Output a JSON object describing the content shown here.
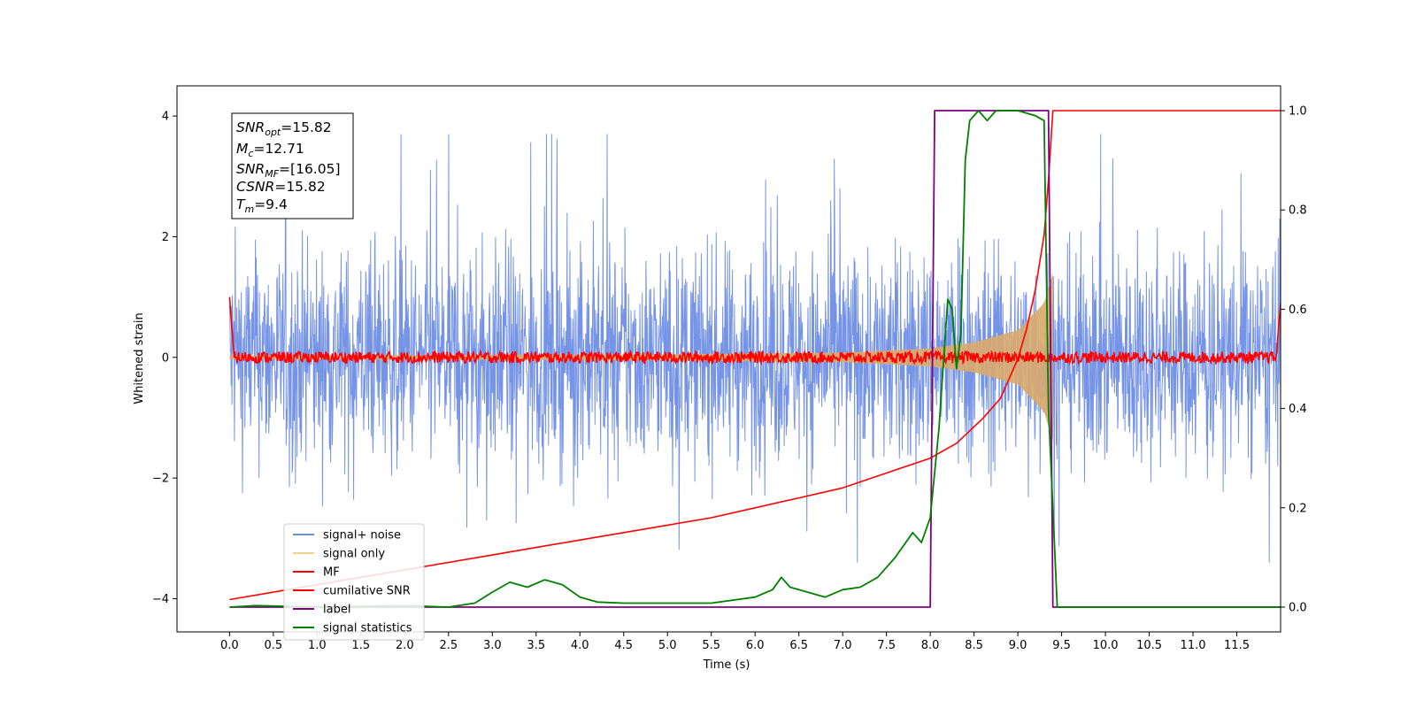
{
  "chart_data": {
    "type": "line",
    "xlabel": "Time (s)",
    "ylabel": "Whitened strain",
    "xlim": [
      -0.6,
      12.0
    ],
    "ylim": [
      -4.55,
      4.5
    ],
    "ylim_right": [
      -0.05,
      1.05
    ],
    "xticks": [
      "0.0",
      "0.5",
      "1.0",
      "1.5",
      "2.0",
      "2.5",
      "3.0",
      "3.5",
      "4.0",
      "4.5",
      "5.0",
      "5.5",
      "6.0",
      "6.5",
      "7.0",
      "7.5",
      "8.0",
      "8.5",
      "9.0",
      "9.5",
      "10.0",
      "10.5",
      "11.0",
      "11.5"
    ],
    "yticks_left": [
      "4",
      "2",
      "0",
      "−2",
      "−4"
    ],
    "yticks_right": [
      "1.0",
      "0.8",
      "0.6",
      "0.4",
      "0.2",
      "0.0"
    ],
    "colors": {
      "noise": "#6f8ee6",
      "signal": "#d9a96c",
      "mf": "#ff0000",
      "csnr": "#ff0000",
      "label": "#800080",
      "stats": "#008000"
    },
    "info_box": {
      "snr_opt_prefix": "SNR",
      "snr_opt_sub": "opt",
      "snr_opt_value": "=15.82",
      "mc_prefix": "M",
      "mc_sub": "c",
      "mc_value": "=12.71",
      "snr_mf_prefix": "SNR",
      "snr_mf_sub": "MF",
      "snr_mf_value": "=[16.05]",
      "csnr_prefix": "CSNR",
      "csnr_value": "=15.82",
      "tm_prefix": "T",
      "tm_sub": "m",
      "tm_value": "=9.4"
    },
    "legend": [
      {
        "label": "signal+ noise",
        "color": "#6f8ee6"
      },
      {
        "label": "signal only",
        "color": "#f5d08a"
      },
      {
        "label": "MF",
        "color": "#ff0000"
      },
      {
        "label": "cumilative SNR",
        "color": "#ff0000"
      },
      {
        "label": "label",
        "color": "#800080"
      },
      {
        "label": "signal statistics",
        "color": "#008000"
      }
    ],
    "series": [
      {
        "name": "signal+ noise",
        "axis": "left",
        "x_range": [
          0.0,
          12.0
        ],
        "band": [
          -1.6,
          1.6
        ],
        "peak_range": [
          -3.4,
          3.7
        ]
      },
      {
        "name": "signal only",
        "axis": "left",
        "x_range": [
          0.0,
          9.4
        ],
        "envelope": [
          [
            0.0,
            0.03
          ],
          [
            5.0,
            0.05
          ],
          [
            7.0,
            0.08
          ],
          [
            8.0,
            0.15
          ],
          [
            8.5,
            0.25
          ],
          [
            9.0,
            0.45
          ],
          [
            9.3,
            0.9
          ],
          [
            9.4,
            1.4
          ]
        ]
      },
      {
        "name": "MF",
        "axis": "left",
        "x_range": [
          0.0,
          12.0
        ],
        "level": 0.0,
        "jitter": 0.12,
        "edges": [
          1.0,
          0.9
        ]
      },
      {
        "name": "cumilative SNR",
        "axis": "right",
        "x": [
          0.0,
          0.5,
          1.0,
          1.5,
          2.0,
          2.5,
          3.0,
          3.5,
          4.0,
          4.5,
          5.0,
          5.5,
          6.0,
          6.5,
          7.0,
          7.5,
          8.0,
          8.3,
          8.6,
          8.8,
          9.0,
          9.1,
          9.2,
          9.3,
          9.35,
          9.4,
          12.0
        ],
        "y": [
          0.015,
          0.03,
          0.045,
          0.06,
          0.075,
          0.09,
          0.105,
          0.12,
          0.135,
          0.15,
          0.165,
          0.18,
          0.2,
          0.22,
          0.24,
          0.27,
          0.3,
          0.33,
          0.38,
          0.42,
          0.5,
          0.56,
          0.64,
          0.75,
          0.86,
          1.0,
          1.0
        ]
      },
      {
        "name": "label",
        "axis": "right",
        "x": [
          0.0,
          8.0,
          8.05,
          9.35,
          9.4,
          12.0
        ],
        "y": [
          0.0,
          0.0,
          1.0,
          1.0,
          0.0,
          0.0
        ]
      },
      {
        "name": "signal statistics",
        "axis": "right",
        "x": [
          0.0,
          0.3,
          1.0,
          2.0,
          2.5,
          2.8,
          3.0,
          3.2,
          3.4,
          3.6,
          3.8,
          4.0,
          4.2,
          4.5,
          5.0,
          5.5,
          6.0,
          6.2,
          6.3,
          6.4,
          6.6,
          6.8,
          7.0,
          7.2,
          7.4,
          7.6,
          7.8,
          7.9,
          8.0,
          8.1,
          8.2,
          8.25,
          8.3,
          8.35,
          8.4,
          8.45,
          8.55,
          8.65,
          8.75,
          8.9,
          9.0,
          9.2,
          9.3,
          9.35,
          9.45,
          12.0
        ],
        "y": [
          0.0,
          0.003,
          0.0,
          0.003,
          0.0,
          0.008,
          0.03,
          0.05,
          0.04,
          0.055,
          0.045,
          0.02,
          0.01,
          0.008,
          0.008,
          0.008,
          0.02,
          0.035,
          0.06,
          0.04,
          0.03,
          0.02,
          0.035,
          0.04,
          0.06,
          0.1,
          0.15,
          0.13,
          0.18,
          0.36,
          0.62,
          0.6,
          0.48,
          0.55,
          0.9,
          0.98,
          1.0,
          0.98,
          1.0,
          1.0,
          1.0,
          0.99,
          0.98,
          0.4,
          0.0,
          0.0
        ]
      }
    ]
  }
}
